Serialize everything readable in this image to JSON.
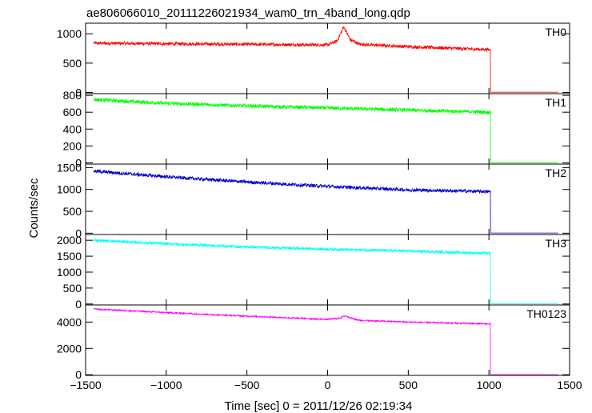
{
  "chart_data": {
    "type": "line",
    "title": "ae806066010_20111226021934_wam0_trn_4band_long.qdp",
    "xlabel": "Time [sec] 0 = 2011/12/26 02:19:34",
    "ylabel": "Counts/sec",
    "xlim": [
      -1500,
      1500
    ],
    "xticks": [
      -1500,
      -1000,
      -500,
      0,
      500,
      1000,
      1500
    ],
    "x_data_range": [
      -1450,
      1430
    ],
    "drop_x": 1010,
    "grid": false,
    "panels": [
      {
        "name": "TH0",
        "color": "#ff0000",
        "ylim": [
          -20,
          1180
        ],
        "yticks": [
          0,
          500,
          1000
        ],
        "trend": [
          [
            -1450,
            840
          ],
          [
            -1000,
            830
          ],
          [
            -500,
            820
          ],
          [
            0,
            810
          ],
          [
            60,
            880
          ],
          [
            100,
            1120
          ],
          [
            140,
            900
          ],
          [
            200,
            820
          ],
          [
            500,
            780
          ],
          [
            1000,
            730
          ]
        ],
        "noise": 28,
        "after_drop_value": 5
      },
      {
        "name": "TH1",
        "color": "#00ff00",
        "ylim": [
          -15,
          820
        ],
        "yticks": [
          0,
          200,
          400,
          600,
          800
        ],
        "trend": [
          [
            -1450,
            750
          ],
          [
            -1000,
            705
          ],
          [
            -500,
            675
          ],
          [
            0,
            650
          ],
          [
            500,
            625
          ],
          [
            1000,
            600
          ]
        ],
        "noise": 22,
        "after_drop_value": 2
      },
      {
        "name": "TH2",
        "color": "#0000cc",
        "ylim": [
          -30,
          1580
        ],
        "yticks": [
          0,
          500,
          1000,
          1500
        ],
        "trend": [
          [
            -1450,
            1420
          ],
          [
            -1000,
            1290
          ],
          [
            -500,
            1170
          ],
          [
            0,
            1070
          ],
          [
            500,
            990
          ],
          [
            1000,
            950
          ]
        ],
        "noise": 40,
        "after_drop_value": 5
      },
      {
        "name": "TH3",
        "color": "#00ffff",
        "ylim": [
          -30,
          2180
        ],
        "yticks": [
          0,
          500,
          1000,
          1500,
          2000
        ],
        "trend": [
          [
            -1450,
            2000
          ],
          [
            -1000,
            1890
          ],
          [
            -500,
            1790
          ],
          [
            0,
            1720
          ],
          [
            500,
            1660
          ],
          [
            1000,
            1590
          ]
        ],
        "noise": 45,
        "after_drop_value": 5
      },
      {
        "name": "TH0123",
        "color": "#ff00ff",
        "ylim": [
          -50,
          5300
        ],
        "yticks": [
          0,
          2000,
          4000
        ],
        "trend": [
          [
            -1450,
            4990
          ],
          [
            -1000,
            4720
          ],
          [
            -500,
            4450
          ],
          [
            0,
            4200
          ],
          [
            70,
            4280
          ],
          [
            110,
            4480
          ],
          [
            150,
            4280
          ],
          [
            200,
            4130
          ],
          [
            500,
            4000
          ],
          [
            1000,
            3860
          ]
        ],
        "noise": 55,
        "after_drop_value": 10
      }
    ]
  }
}
